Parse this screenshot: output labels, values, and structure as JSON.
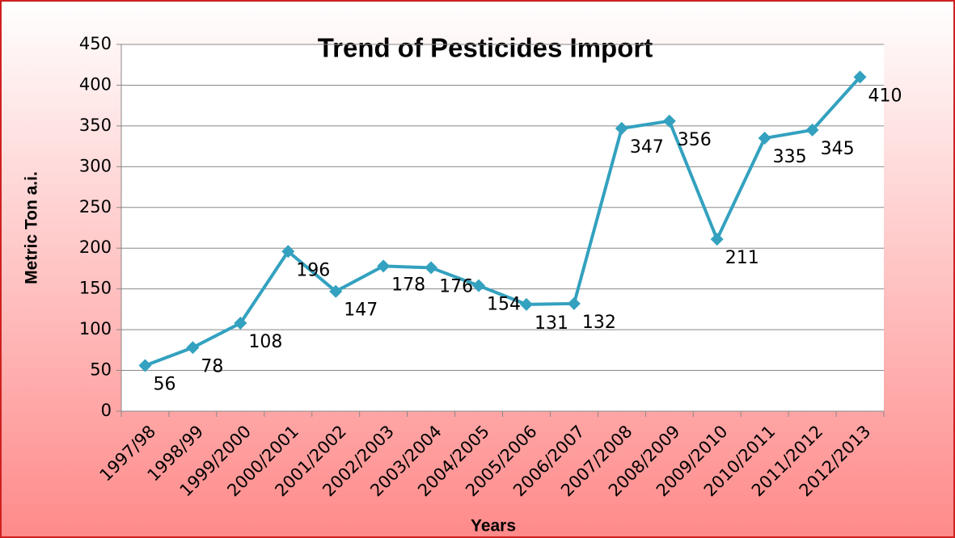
{
  "chart_data": {
    "type": "line",
    "title": "Trend of Pesticides Import",
    "x_label": "Years",
    "y_label": "Metric Ton a.i.",
    "categories": [
      "1997/98",
      "1998/99",
      "1999/2000",
      "2000/2001",
      "2001/2002",
      "2002/2003",
      "2003/2004",
      "2004/2005",
      "2005/2006",
      "2006/2007",
      "2007/2008",
      "2008/2009",
      "2009/2010",
      "2010/2011",
      "2011/2012",
      "2012/2013"
    ],
    "series": [
      {
        "name": "Metric Ton a.i.",
        "color": "#33a1bf",
        "values": [
          56,
          78,
          108,
          196,
          147,
          178,
          176,
          154,
          131,
          132,
          347,
          356,
          211,
          335,
          345,
          410
        ]
      }
    ],
    "ylim": [
      0,
      450
    ],
    "yticks": [
      0,
      50,
      100,
      150,
      200,
      250,
      300,
      350,
      400,
      450
    ],
    "grid": true
  }
}
